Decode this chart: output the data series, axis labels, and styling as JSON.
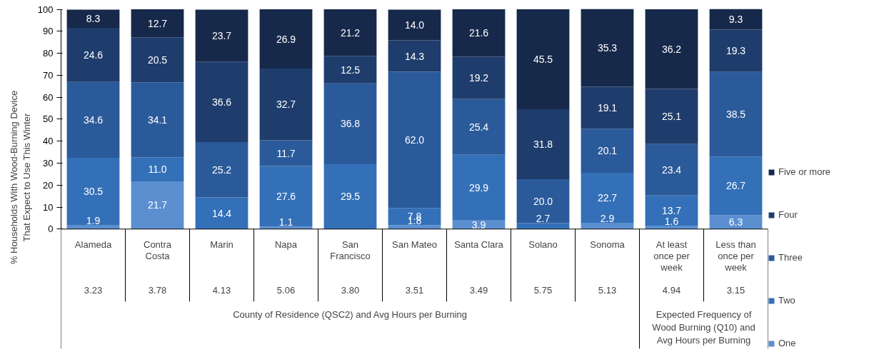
{
  "chart_data": {
    "type": "bar",
    "stacked": true,
    "legend": "right",
    "grid": false,
    "ylabel": "% Households With Wood-Burning Device That Expect to Use This Winter",
    "xlabel": "County of Residence (QSC2) and Avg Hours per Burning",
    "categories": [
      "Alameda",
      "Contra Costa",
      "Marin",
      "Napa",
      "San Francisco",
      "San Mateo",
      "Santa Clara",
      "Solano",
      "Sonoma",
      "At least once per week",
      "Less than once per week"
    ],
    "ylim": [
      0,
      100
    ],
    "yticks": [
      0,
      10,
      20,
      30,
      40,
      50,
      60,
      70,
      80,
      90,
      100
    ],
    "series": [
      {
        "name": "One",
        "color": "#5b8fd0",
        "values": [
          1.9,
          21.7,
          0.0,
          1.1,
          0.0,
          1.8,
          3.9,
          0.0,
          2.9,
          1.6,
          6.3
        ],
        "value_labels": [
          "1.9",
          "21.7",
          null,
          "1.1",
          null,
          "1.8",
          "3.9",
          null,
          "2.9",
          "1.6",
          "6.3"
        ]
      },
      {
        "name": "Two",
        "color": "#3470b8",
        "values": [
          30.5,
          11.0,
          14.4,
          27.6,
          29.5,
          7.8,
          29.9,
          2.7,
          22.7,
          13.7,
          26.7
        ],
        "value_labels": [
          "30.5",
          "11.0",
          "14.4",
          "27.6",
          "29.5",
          "7.8",
          "29.9",
          "2.7",
          "22.7",
          "13.7",
          "26.7"
        ]
      },
      {
        "name": "Three",
        "color": "#2b5a9a",
        "values": [
          34.6,
          34.1,
          25.2,
          11.7,
          36.8,
          62.0,
          25.4,
          20.0,
          20.1,
          23.4,
          38.5
        ],
        "value_labels": [
          "34.6",
          "34.1",
          "25.2",
          "11.7",
          "36.8",
          "62.0",
          "25.4",
          "20.0",
          "20.1",
          "23.4",
          "38.5"
        ]
      },
      {
        "name": "Four",
        "color": "#1f3d6c",
        "values": [
          24.6,
          20.5,
          36.6,
          32.7,
          12.5,
          14.3,
          19.2,
          31.8,
          19.1,
          25.1,
          19.3
        ],
        "value_labels": [
          "24.6",
          "20.5",
          "36.6",
          "32.7",
          "12.5",
          "14.3",
          "19.2",
          "31.8",
          "19.1",
          "25.1",
          "19.3"
        ]
      },
      {
        "name": "Five or more",
        "color": "#17294a",
        "values": [
          8.3,
          12.7,
          23.7,
          26.9,
          21.2,
          14.0,
          21.6,
          45.5,
          35.3,
          36.2,
          9.3
        ],
        "value_labels": [
          "8.3",
          "12.7",
          "23.7",
          "26.9",
          "21.2",
          "14.0",
          "21.6",
          "45.5",
          "35.3",
          "36.2",
          "9.3"
        ]
      }
    ],
    "annotations": [
      "3.23",
      "3.78",
      "4.13",
      "5.06",
      "3.80",
      "3.51",
      "3.49",
      "5.75",
      "5.13",
      "4.94",
      "3.15",
      "Expected Frequency of Wood Burning (Q10) and Avg Hours per Burning"
    ]
  }
}
